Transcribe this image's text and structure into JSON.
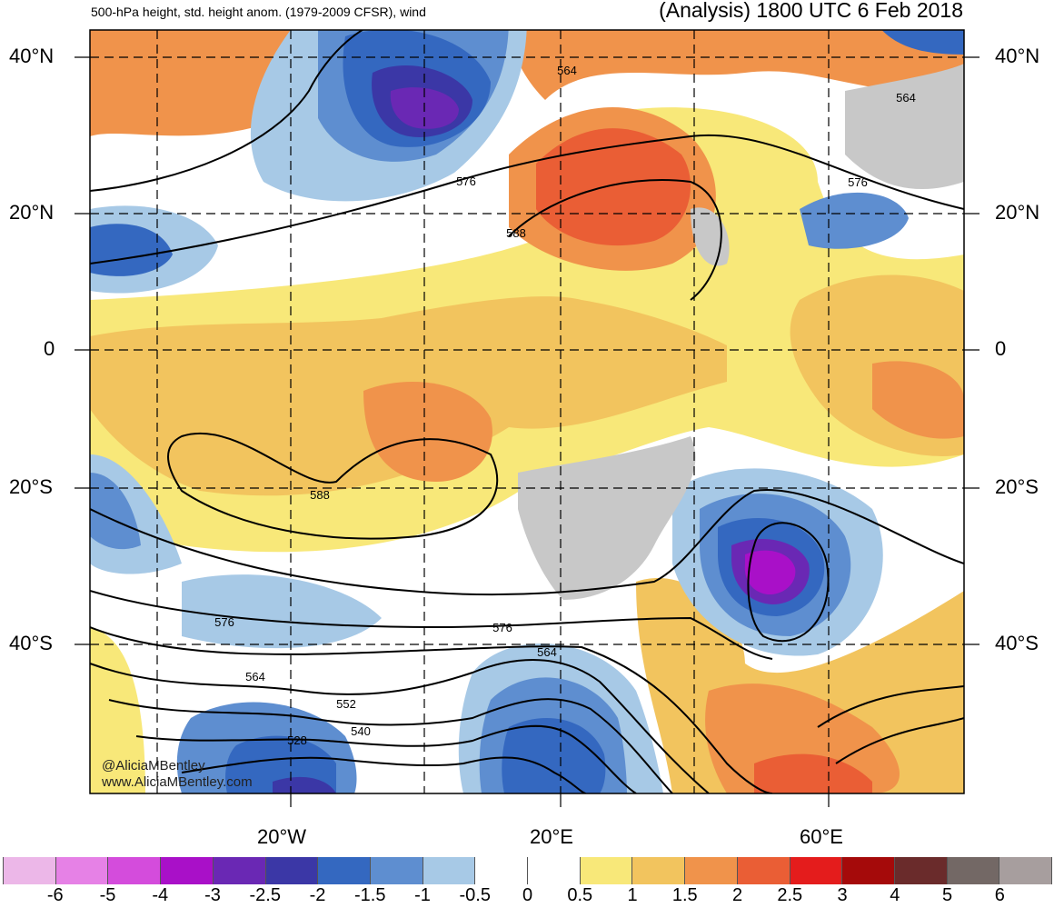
{
  "header": {
    "left_title": "500-hPa height, std. height anom. (1979-2009 CFSR), wind",
    "right_title": "(Analysis) 1800 UTC 6 Feb 2018"
  },
  "lat_labels": [
    {
      "text": "40°N"
    },
    {
      "text": "20°N"
    },
    {
      "text": "0"
    },
    {
      "text": "20°S"
    },
    {
      "text": "40°S"
    }
  ],
  "lon_labels": [
    {
      "text": "20°W"
    },
    {
      "text": "20°E"
    },
    {
      "text": "60°E"
    }
  ],
  "contour_labels": [
    "564",
    "564",
    "576",
    "576",
    "588",
    "588",
    "576",
    "576",
    "564",
    "564",
    "552",
    "540",
    "528"
  ],
  "credits": {
    "handle": "@AliciaMBentley",
    "website": "www.AliciaMBentley.com"
  },
  "colorbar": {
    "colors": [
      "#ecb7e8",
      "#e681e6",
      "#d44cdc",
      "#a910c8",
      "#6a28b4",
      "#3b37a6",
      "#3468c0",
      "#5e8ed0",
      "#a7c9e6",
      "#ffffff",
      "#ffffff",
      "#f8e879",
      "#f2c45e",
      "#f0934b",
      "#ea5e35",
      "#e41c1c",
      "#a50a0a",
      "#6a2b2b",
      "#736865",
      "#a79e9e"
    ],
    "ticks": [
      "-6",
      "-5",
      "-4",
      "-3",
      "-2.5",
      "-2",
      "-1.5",
      "-1",
      "-0.5",
      "0",
      "0.5",
      "1",
      "1.5",
      "2",
      "2.5",
      "3",
      "4",
      "5",
      "6"
    ]
  },
  "palette": {
    "land_gray": "#c8c8c8",
    "contour": "#000000",
    "grid": "#000000"
  }
}
